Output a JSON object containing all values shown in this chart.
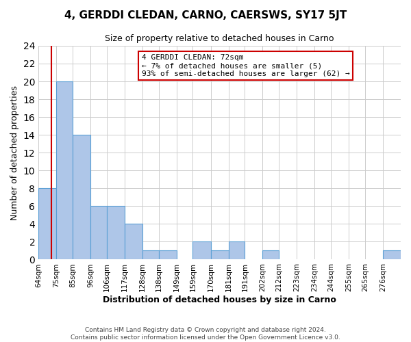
{
  "title": "4, GERDDI CLEDAN, CARNO, CAERSWS, SY17 5JT",
  "subtitle": "Size of property relative to detached houses in Carno",
  "xlabel": "Distribution of detached houses by size in Carno",
  "ylabel": "Number of detached properties",
  "bin_labels": [
    "64sqm",
    "75sqm",
    "85sqm",
    "96sqm",
    "106sqm",
    "117sqm",
    "128sqm",
    "138sqm",
    "149sqm",
    "159sqm",
    "170sqm",
    "181sqm",
    "191sqm",
    "202sqm",
    "212sqm",
    "223sqm",
    "234sqm",
    "244sqm",
    "255sqm",
    "265sqm",
    "276sqm"
  ],
  "bin_edges": [
    64,
    75,
    85,
    96,
    106,
    117,
    128,
    138,
    149,
    159,
    170,
    181,
    191,
    202,
    212,
    223,
    234,
    244,
    255,
    265,
    276,
    287
  ],
  "counts": [
    8,
    20,
    14,
    6,
    6,
    4,
    1,
    1,
    0,
    2,
    1,
    2,
    0,
    1,
    0,
    0,
    0,
    0,
    0,
    0,
    1
  ],
  "bar_color": "#aec6e8",
  "bar_edge_color": "#5a9fd4",
  "vline_x": 72,
  "vline_color": "#cc0000",
  "annotation_text": "4 GERDDI CLEDAN: 72sqm\n← 7% of detached houses are smaller (5)\n93% of semi-detached houses are larger (62) →",
  "annotation_box_color": "#ffffff",
  "annotation_box_edge_color": "#cc0000",
  "ylim": [
    0,
    24
  ],
  "yticks": [
    0,
    2,
    4,
    6,
    8,
    10,
    12,
    14,
    16,
    18,
    20,
    22,
    24
  ],
  "footer1": "Contains HM Land Registry data © Crown copyright and database right 2024.",
  "footer2": "Contains public sector information licensed under the Open Government Licence v3.0.",
  "background_color": "#ffffff",
  "grid_color": "#cccccc"
}
